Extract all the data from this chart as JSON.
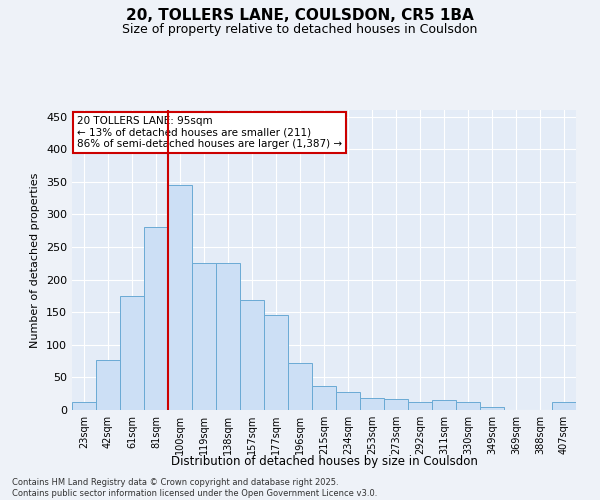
{
  "title": "20, TOLLERS LANE, COULSDON, CR5 1BA",
  "subtitle": "Size of property relative to detached houses in Coulsdon",
  "xlabel": "Distribution of detached houses by size in Coulsdon",
  "ylabel": "Number of detached properties",
  "footer_line1": "Contains HM Land Registry data © Crown copyright and database right 2025.",
  "footer_line2": "Contains public sector information licensed under the Open Government Licence v3.0.",
  "categories": [
    "23sqm",
    "42sqm",
    "61sqm",
    "81sqm",
    "100sqm",
    "119sqm",
    "138sqm",
    "157sqm",
    "177sqm",
    "196sqm",
    "215sqm",
    "234sqm",
    "253sqm",
    "273sqm",
    "292sqm",
    "311sqm",
    "330sqm",
    "349sqm",
    "369sqm",
    "388sqm",
    "407sqm"
  ],
  "values": [
    12,
    77,
    175,
    280,
    345,
    225,
    225,
    168,
    145,
    72,
    37,
    27,
    18,
    17,
    12,
    15,
    12,
    5,
    0,
    0,
    12
  ],
  "bar_color": "#ccdff5",
  "bar_edge_color": "#6aaad4",
  "vline_x": 3.5,
  "vline_color": "#cc0000",
  "annotation_title": "20 TOLLERS LANE: 95sqm",
  "annotation_line2": "← 13% of detached houses are smaller (211)",
  "annotation_line3": "86% of semi-detached houses are larger (1,387) →",
  "annotation_box_color": "#cc0000",
  "ylim": [
    0,
    460
  ],
  "yticks": [
    0,
    50,
    100,
    150,
    200,
    250,
    300,
    350,
    400,
    450
  ],
  "background_color": "#eef2f8",
  "plot_background_color": "#e4ecf7",
  "grid_color": "#ffffff",
  "title_fontsize": 11,
  "subtitle_fontsize": 9
}
